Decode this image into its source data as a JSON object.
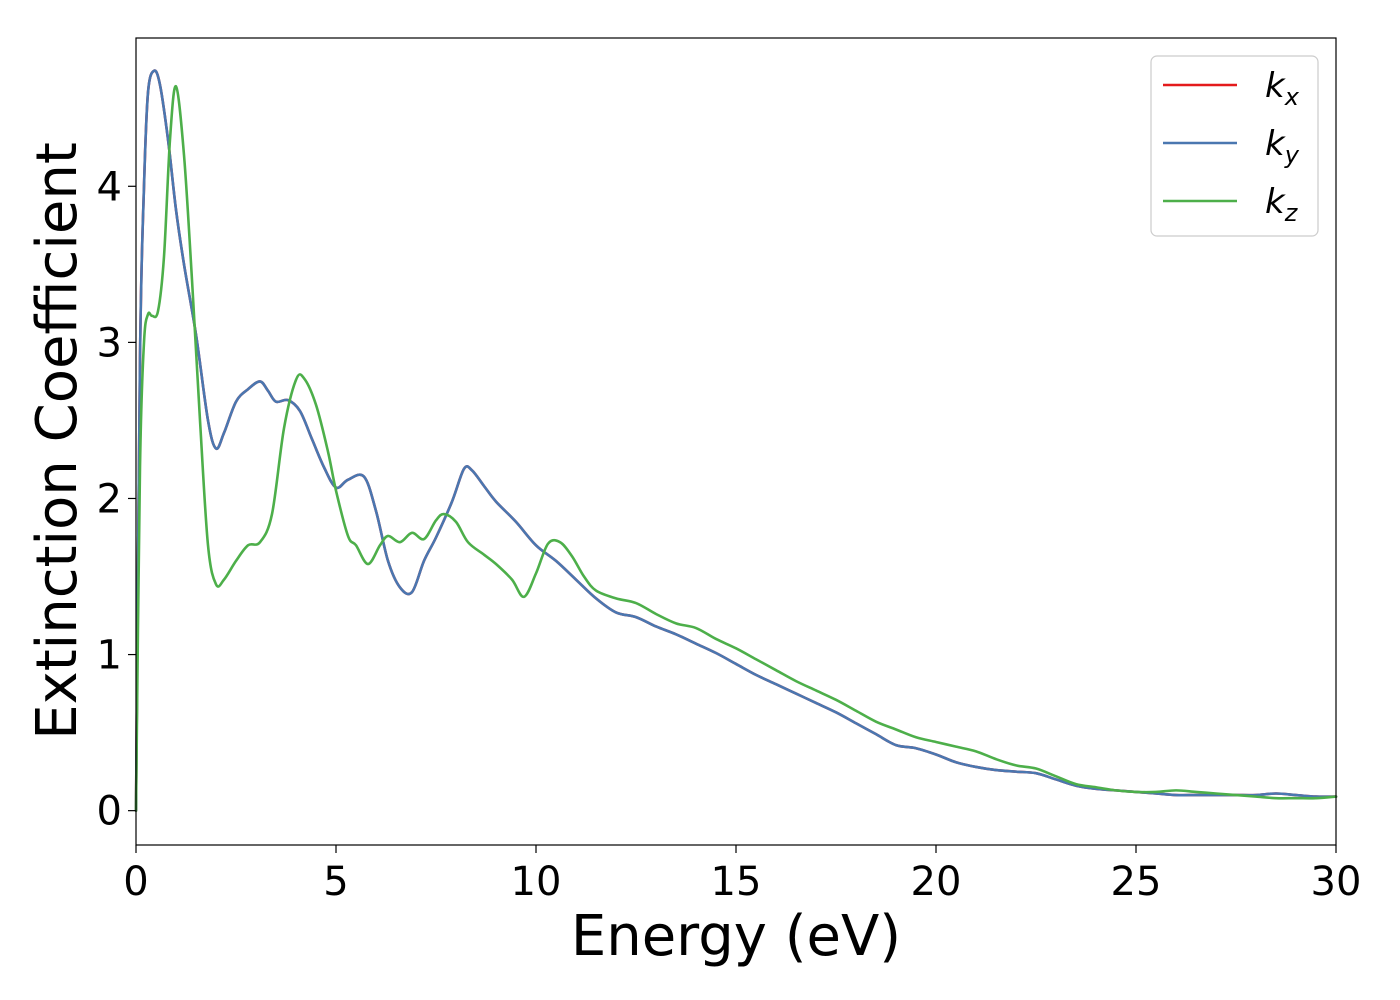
{
  "chart_data": {
    "type": "line",
    "xlabel": "Energy (eV)",
    "ylabel": "Extinction Coefficient",
    "xlim": [
      0,
      30
    ],
    "ylim": [
      -0.22,
      4.95
    ],
    "xticks": [
      0,
      5,
      10,
      15,
      20,
      25,
      30
    ],
    "yticks": [
      0,
      1,
      2,
      3,
      4
    ],
    "grid": false,
    "legend_position": "top-right",
    "series": [
      {
        "name": "k_x",
        "label_main": "k",
        "label_sub": "x",
        "color": "#e41a1c",
        "x": [
          0,
          0.1,
          0.2,
          0.3,
          0.45,
          0.6,
          0.8,
          1.0,
          1.2,
          1.5,
          1.8,
          2.0,
          2.2,
          2.5,
          2.8,
          3.1,
          3.3,
          3.5,
          3.8,
          4.1,
          4.4,
          4.7,
          5.0,
          5.3,
          5.7,
          6.0,
          6.3,
          6.6,
          6.9,
          7.2,
          7.5,
          7.9,
          8.2,
          8.4,
          8.7,
          9.0,
          9.5,
          10.0,
          10.5,
          11.0,
          11.5,
          12.0,
          12.5,
          13.0,
          13.5,
          14.0,
          14.5,
          15.0,
          15.5,
          16.0,
          16.5,
          17.0,
          17.5,
          18.0,
          18.5,
          19.0,
          19.5,
          20.0,
          20.5,
          21.0,
          21.5,
          22.0,
          22.5,
          23.0,
          23.5,
          24.0,
          24.5,
          25.0,
          25.5,
          26.0,
          26.5,
          27.0,
          27.5,
          28.0,
          28.5,
          29.0,
          29.5,
          30.0
        ],
        "y": [
          0,
          2.9,
          4.0,
          4.6,
          4.74,
          4.65,
          4.3,
          3.85,
          3.5,
          3.05,
          2.5,
          2.32,
          2.42,
          2.62,
          2.7,
          2.75,
          2.69,
          2.62,
          2.63,
          2.56,
          2.38,
          2.2,
          2.07,
          2.12,
          2.14,
          1.92,
          1.6,
          1.43,
          1.4,
          1.6,
          1.75,
          1.98,
          2.19,
          2.18,
          2.08,
          1.98,
          1.85,
          1.7,
          1.6,
          1.48,
          1.36,
          1.27,
          1.24,
          1.18,
          1.13,
          1.07,
          1.01,
          0.94,
          0.87,
          0.81,
          0.75,
          0.69,
          0.63,
          0.56,
          0.49,
          0.42,
          0.4,
          0.36,
          0.31,
          0.28,
          0.26,
          0.25,
          0.24,
          0.2,
          0.16,
          0.14,
          0.13,
          0.12,
          0.11,
          0.1,
          0.1,
          0.1,
          0.1,
          0.1,
          0.11,
          0.1,
          0.09,
          0.09
        ]
      },
      {
        "name": "k_y",
        "label_main": "k",
        "label_sub": "y",
        "color": "#4a77b0",
        "x": [
          0,
          0.1,
          0.2,
          0.3,
          0.45,
          0.6,
          0.8,
          1.0,
          1.2,
          1.5,
          1.8,
          2.0,
          2.2,
          2.5,
          2.8,
          3.1,
          3.3,
          3.5,
          3.8,
          4.1,
          4.4,
          4.7,
          5.0,
          5.3,
          5.7,
          6.0,
          6.3,
          6.6,
          6.9,
          7.2,
          7.5,
          7.9,
          8.2,
          8.4,
          8.7,
          9.0,
          9.5,
          10.0,
          10.5,
          11.0,
          11.5,
          12.0,
          12.5,
          13.0,
          13.5,
          14.0,
          14.5,
          15.0,
          15.5,
          16.0,
          16.5,
          17.0,
          17.5,
          18.0,
          18.5,
          19.0,
          19.5,
          20.0,
          20.5,
          21.0,
          21.5,
          22.0,
          22.5,
          23.0,
          23.5,
          24.0,
          24.5,
          25.0,
          25.5,
          26.0,
          26.5,
          27.0,
          27.5,
          28.0,
          28.5,
          29.0,
          29.5,
          30.0
        ],
        "y": [
          0,
          2.9,
          4.0,
          4.6,
          4.74,
          4.65,
          4.3,
          3.85,
          3.5,
          3.05,
          2.5,
          2.32,
          2.42,
          2.62,
          2.7,
          2.75,
          2.69,
          2.62,
          2.63,
          2.56,
          2.38,
          2.2,
          2.07,
          2.12,
          2.14,
          1.92,
          1.6,
          1.43,
          1.4,
          1.6,
          1.75,
          1.98,
          2.19,
          2.18,
          2.08,
          1.98,
          1.85,
          1.7,
          1.6,
          1.48,
          1.36,
          1.27,
          1.24,
          1.18,
          1.13,
          1.07,
          1.01,
          0.94,
          0.87,
          0.81,
          0.75,
          0.69,
          0.63,
          0.56,
          0.49,
          0.42,
          0.4,
          0.36,
          0.31,
          0.28,
          0.26,
          0.25,
          0.24,
          0.2,
          0.16,
          0.14,
          0.13,
          0.12,
          0.11,
          0.1,
          0.1,
          0.1,
          0.1,
          0.1,
          0.11,
          0.1,
          0.09,
          0.09
        ]
      },
      {
        "name": "k_z",
        "label_main": "k",
        "label_sub": "z",
        "color": "#4daf4a",
        "x": [
          0,
          0.1,
          0.2,
          0.3,
          0.4,
          0.55,
          0.7,
          0.85,
          1.0,
          1.2,
          1.4,
          1.6,
          1.8,
          2.0,
          2.2,
          2.5,
          2.8,
          3.1,
          3.4,
          3.7,
          4.0,
          4.2,
          4.5,
          4.8,
          5.0,
          5.3,
          5.5,
          5.8,
          6.1,
          6.3,
          6.6,
          6.9,
          7.2,
          7.5,
          7.7,
          8.0,
          8.3,
          8.7,
          9.0,
          9.4,
          9.7,
          10.0,
          10.3,
          10.6,
          10.9,
          11.2,
          11.5,
          12.0,
          12.5,
          13.0,
          13.5,
          14.0,
          14.5,
          15.0,
          15.5,
          16.0,
          16.5,
          17.0,
          17.5,
          18.0,
          18.5,
          19.0,
          19.5,
          20.0,
          20.5,
          21.0,
          21.5,
          22.0,
          22.5,
          23.0,
          23.5,
          24.0,
          24.5,
          25.0,
          25.5,
          26.0,
          26.5,
          27.0,
          27.5,
          28.0,
          28.5,
          29.0,
          29.5,
          30.0
        ],
        "y": [
          0,
          2.2,
          3.0,
          3.18,
          3.17,
          3.2,
          3.55,
          4.3,
          4.64,
          4.2,
          3.4,
          2.5,
          1.7,
          1.45,
          1.48,
          1.6,
          1.7,
          1.72,
          1.9,
          2.45,
          2.76,
          2.77,
          2.6,
          2.3,
          2.05,
          1.76,
          1.7,
          1.58,
          1.7,
          1.76,
          1.72,
          1.78,
          1.74,
          1.86,
          1.9,
          1.85,
          1.72,
          1.64,
          1.58,
          1.48,
          1.37,
          1.52,
          1.71,
          1.72,
          1.63,
          1.5,
          1.41,
          1.36,
          1.33,
          1.26,
          1.2,
          1.17,
          1.1,
          1.04,
          0.97,
          0.9,
          0.83,
          0.77,
          0.71,
          0.64,
          0.57,
          0.52,
          0.47,
          0.44,
          0.41,
          0.38,
          0.33,
          0.29,
          0.27,
          0.22,
          0.17,
          0.15,
          0.13,
          0.12,
          0.12,
          0.13,
          0.12,
          0.11,
          0.1,
          0.09,
          0.08,
          0.08,
          0.08,
          0.09
        ]
      }
    ]
  }
}
